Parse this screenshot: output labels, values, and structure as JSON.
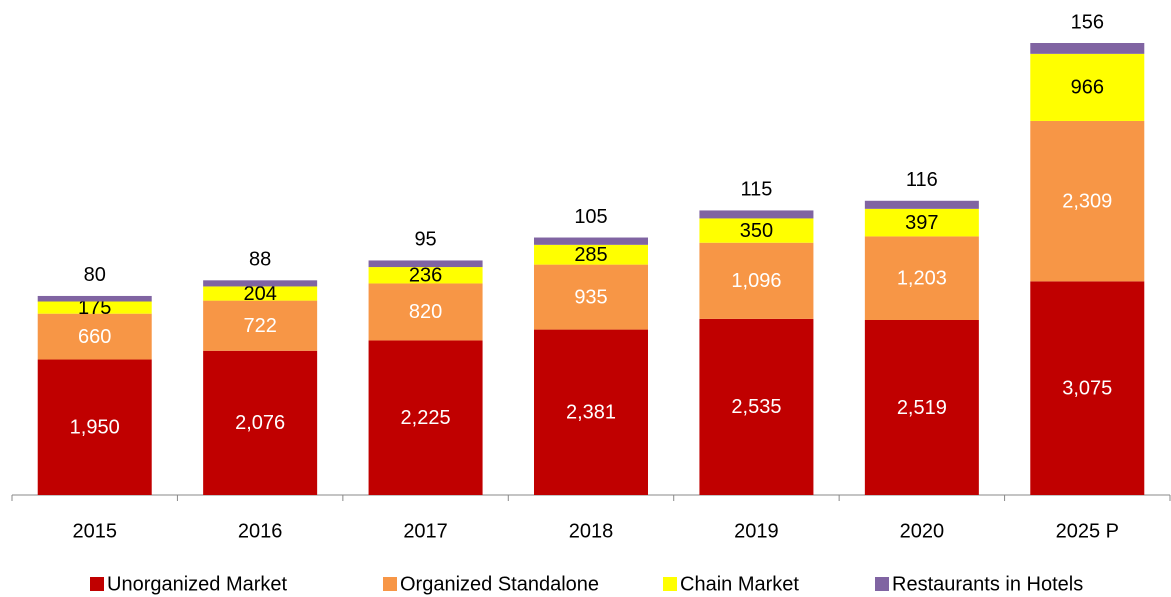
{
  "chart_data": {
    "type": "stacked_bar",
    "categories": [
      "2015",
      "2016",
      "2017",
      "2018",
      "2019",
      "2020",
      "2025 P"
    ],
    "series": [
      {
        "name": "Unorganized Market",
        "color": "#c00000",
        "label_color": "#ffffff",
        "values": [
          1950,
          2076,
          2225,
          2381,
          2535,
          2519,
          3075
        ],
        "value_labels": [
          "1,950",
          "2,076",
          "2,225",
          "2,381",
          "2,535",
          "2,519",
          "3,075"
        ]
      },
      {
        "name": "Organized Standalone",
        "color": "#f79646",
        "label_color": "#ffffff",
        "values": [
          660,
          722,
          820,
          935,
          1096,
          1203,
          2309
        ],
        "value_labels": [
          "660",
          "722",
          "820",
          "935",
          "1,096",
          "1,203",
          "2,309"
        ]
      },
      {
        "name": "Chain Market",
        "color": "#ffff00",
        "label_color": "#000000",
        "values": [
          175,
          204,
          236,
          285,
          350,
          397,
          966
        ]
      },
      {
        "name": "Restaurants in Hotels",
        "color": "#8064a2",
        "label_color": "#000000",
        "values": [
          80,
          88,
          95,
          105,
          115,
          116,
          156
        ]
      }
    ]
  }
}
